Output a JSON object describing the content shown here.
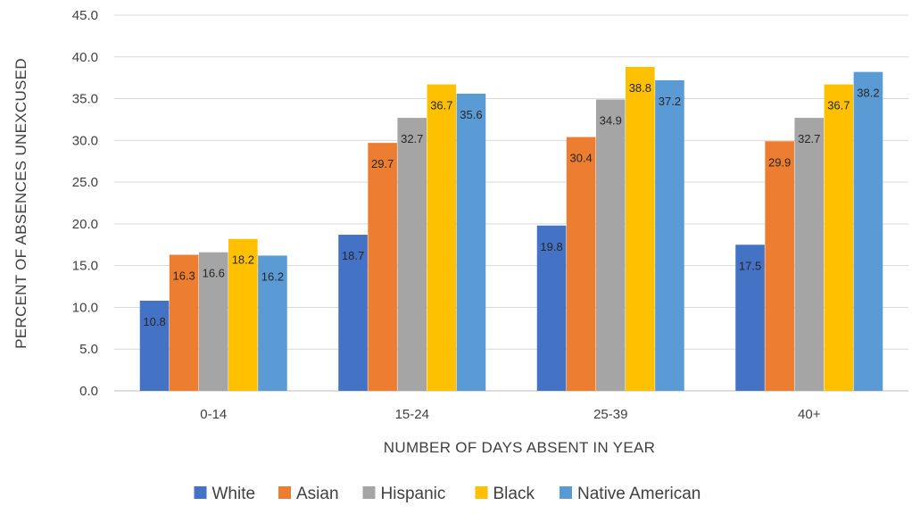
{
  "chart_data": {
    "type": "bar",
    "title": "",
    "xlabel": "NUMBER OF DAYS ABSENT IN YEAR",
    "ylabel": "PERCENT OF ABSENCES UNEXCUSED",
    "ylim": [
      0,
      45
    ],
    "yticks": [
      "0.0",
      "5.0",
      "10.0",
      "15.0",
      "20.0",
      "25.0",
      "30.0",
      "35.0",
      "40.0",
      "45.0"
    ],
    "grid": true,
    "legend_position": "bottom",
    "categories": [
      "0-14",
      "15-24",
      "25-39",
      "40+"
    ],
    "series": [
      {
        "name": "White",
        "color": "#4472C4",
        "values": [
          10.8,
          18.7,
          19.8,
          17.5
        ]
      },
      {
        "name": "Asian",
        "color": "#ED7D31",
        "values": [
          16.3,
          29.7,
          30.4,
          29.9
        ]
      },
      {
        "name": "Hispanic",
        "color": "#A5A5A5",
        "values": [
          16.6,
          32.7,
          34.9,
          32.7
        ]
      },
      {
        "name": "Black",
        "color": "#FFC000",
        "values": [
          18.2,
          36.7,
          38.8,
          36.7
        ]
      },
      {
        "name": "Native American",
        "color": "#5B9BD5",
        "values": [
          16.2,
          35.6,
          37.2,
          38.2
        ]
      }
    ]
  }
}
